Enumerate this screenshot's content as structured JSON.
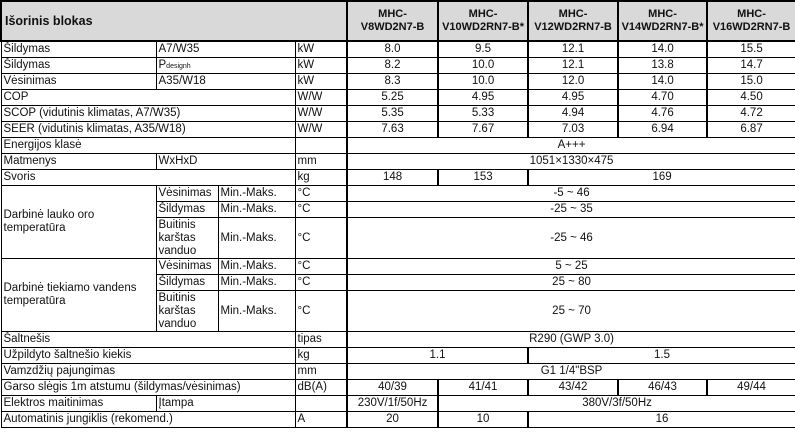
{
  "header": {
    "title": "Išorinis blokas",
    "models": [
      "MHC-\nV8WD2N7-B",
      "MHC-\nV10WD2RN7-B*",
      "MHC-\nV12WD2RN7-B",
      "MHC-\nV14WD2RN7-B*",
      "MHC-\nV16WD2RN7-B"
    ]
  },
  "rows": {
    "heat_a7": {
      "label": "Šildymas",
      "cond": "A7/W35",
      "unit": "kW",
      "values": [
        "8.0",
        "9.5",
        "12.1",
        "14.0",
        "15.5"
      ]
    },
    "heat_p": {
      "label": "Šildymas",
      "cond_main": "P",
      "cond_sub": "designh",
      "unit": "kW",
      "values": [
        "8.2",
        "10.0",
        "12.1",
        "13.8",
        "14.7"
      ]
    },
    "cool": {
      "label": "Vėsinimas",
      "cond": "A35/W18",
      "unit": "kW",
      "values": [
        "8.3",
        "10.0",
        "12.0",
        "14.0",
        "15.0"
      ]
    },
    "cop": {
      "label": "COP",
      "unit": "W/W",
      "values": [
        "5.25",
        "4.95",
        "4.95",
        "4.70",
        "4.50"
      ]
    },
    "scop": {
      "label": "SCOP (vidutinis klimatas, A7/W35)",
      "unit": "W/W",
      "values": [
        "5.35",
        "5.33",
        "4.94",
        "4.76",
        "4.72"
      ]
    },
    "seer": {
      "label": "SEER (vidutinis klimatas, A35/W18)",
      "unit": "W/W",
      "values": [
        "7.63",
        "7.67",
        "7.03",
        "6.94",
        "6.87"
      ]
    },
    "energy": {
      "label": "Energijos klasė",
      "unit": "",
      "value": "A+++"
    },
    "dims": {
      "label": "Matmenys",
      "cond": "WxHxD",
      "unit": "mm",
      "value": "1051×1330×475"
    },
    "weight": {
      "label": "Svoris",
      "unit": "kg",
      "values": [
        "148",
        "153",
        "169"
      ]
    },
    "air_temp": {
      "label": "Darbinė lauko oro temperatūra",
      "sub": [
        {
          "mode": "Vėsinimas",
          "range": "Min.-Maks.",
          "unit": "°C",
          "value": "-5 ~ 46"
        },
        {
          "mode": "Šildymas",
          "range": "Min.-Maks.",
          "unit": "°C",
          "value": "-25 ~ 35"
        },
        {
          "mode": "Buitinis karštas vanduo",
          "range": "Min.-Maks.",
          "unit": "°C",
          "value": "-25 ~ 46"
        }
      ]
    },
    "water_temp": {
      "label": "Darbinė tiekiamo vandens temperatūra",
      "sub": [
        {
          "mode": "Vėsinimas",
          "range": "Min.-Maks.",
          "unit": "°C",
          "value": "5 ~ 25"
        },
        {
          "mode": "Šildymas",
          "range": "Min.-Maks.",
          "unit": "°C",
          "value": "25 ~ 80"
        },
        {
          "mode": "Buitinis karštas vanduo",
          "range": "Min.-Maks.",
          "unit": "°C",
          "value": "25 ~ 70"
        }
      ]
    },
    "refrigerant": {
      "label": "Šaltnešis",
      "unit": "tipas",
      "value": "R290 (GWP 3.0)"
    },
    "charge": {
      "label": "Užpildyto šaltnešio kiekis",
      "unit": "kg",
      "values": [
        "1.1",
        "1.5"
      ]
    },
    "pipe": {
      "label": "Vamzdžių pajungimas",
      "unit": "mm",
      "value": "G1 1/4\"BSP"
    },
    "noise": {
      "label": "Garso slėgis 1m atstumu (šildymas/vėsinimas)",
      "unit": "dB(A)",
      "values": [
        "40/39",
        "41/41",
        "43/42",
        "46/43",
        "49/44"
      ]
    },
    "power": {
      "label": "Elektros maitinimas",
      "cond": "Įtampa",
      "unit": "",
      "values": [
        "230V/1f/50Hz",
        "380V/3f/50Hz"
      ]
    },
    "breaker": {
      "label": "Automatinis jungiklis (rekomend.)",
      "unit": "A",
      "values": [
        "20",
        "10",
        "16"
      ]
    }
  }
}
